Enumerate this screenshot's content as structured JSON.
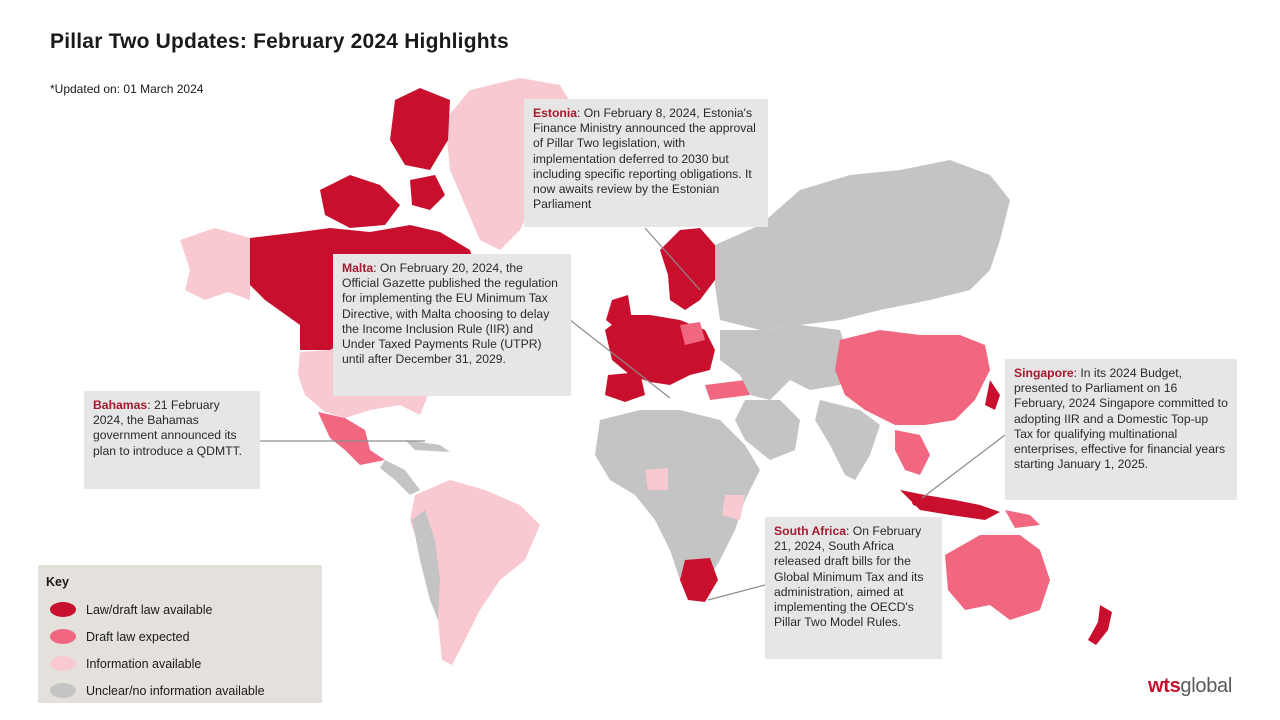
{
  "title": "Pillar Two Updates: February 2024 Highlights",
  "updated": "*Updated on: 01 March 2024",
  "colors": {
    "law": "#c8102e",
    "draft": "#f0677f",
    "info": "#f9c9d1",
    "unclear": "#c4c4c4"
  },
  "callouts": {
    "estonia": {
      "country": "Estonia",
      "text": ": On February 8, 2024, Estonia's Finance Ministry announced the approval of Pillar Two legislation, with implementation deferred to 2030 but including specific reporting obligations. It now awaits review by the Estonian Parliament"
    },
    "malta": {
      "country": "Malta",
      "text": ": On February 20, 2024, the Official Gazette published the regulation for implementing the EU Minimum Tax Directive, with Malta choosing to delay the Income Inclusion Rule (IIR) and Under Taxed Payments Rule (UTPR) until after December 31, 2029."
    },
    "bahamas": {
      "country": "Bahamas",
      "text": ": 21 February 2024, the Bahamas government announced its plan to introduce a QDMTT."
    },
    "singapore": {
      "country": "Singapore",
      "text": ": In its 2024 Budget, presented to Parliament on 16 February, 2024 Singapore committed to adopting IIR and a Domestic Top-up Tax for qualifying multinational enterprises, effective for financial years starting January 1, 2025."
    },
    "south_africa": {
      "country": "South Africa",
      "text": ": On February 21, 2024, South Africa released draft bills for the Global Minimum Tax and its administration, aimed at implementing the OECD's Pillar Two Model Rules."
    }
  },
  "key": {
    "title": "Key",
    "items": [
      {
        "label": "Law/draft law available",
        "color": "#c8102e"
      },
      {
        "label": "Draft law expected",
        "color": "#f0677f"
      },
      {
        "label": "Information available",
        "color": "#f9c9d1"
      },
      {
        "label": "Unclear/no information available",
        "color": "#c4c4c4"
      }
    ]
  },
  "logo": {
    "part1": "wts",
    "part2": "global"
  }
}
